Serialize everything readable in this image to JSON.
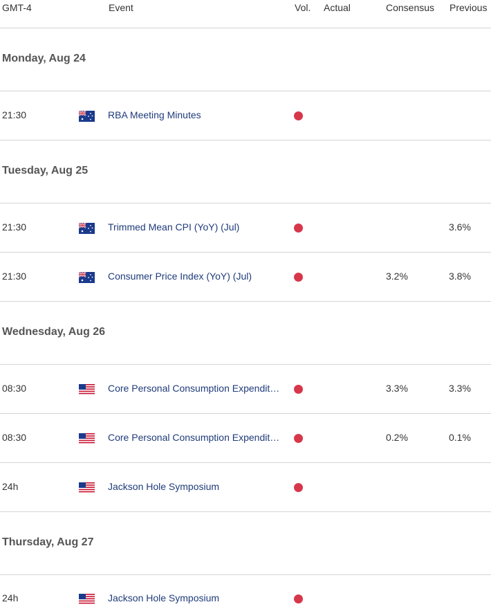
{
  "columns": {
    "time": "GMT-4",
    "event": "Event",
    "vol": "Vol.",
    "actual": "Actual",
    "consensus": "Consensus",
    "previous": "Previous"
  },
  "colors": {
    "volatility_high": "#d7374b",
    "event_link": "#1f3b7a"
  },
  "days": [
    {
      "label": "Monday, Aug 24",
      "events": [
        {
          "time": "21:30",
          "country": "au-flag-icon",
          "title": "RBA Meeting Minutes",
          "actual": "",
          "consensus": "",
          "previous": ""
        }
      ]
    },
    {
      "label": "Tuesday, Aug 25",
      "events": [
        {
          "time": "21:30",
          "country": "au-flag-icon",
          "title": "Trimmed Mean CPI (YoY) (Jul)",
          "actual": "",
          "consensus": "",
          "previous": "3.6%"
        },
        {
          "time": "21:30",
          "country": "au-flag-icon",
          "title": "Consumer Price Index (YoY) (Jul)",
          "actual": "",
          "consensus": "3.2%",
          "previous": "3.8%"
        }
      ]
    },
    {
      "label": "Wednesday, Aug 26",
      "events": [
        {
          "time": "08:30",
          "country": "us-flag-icon",
          "title": "Core Personal Consumption Expendit…",
          "actual": "",
          "consensus": "3.3%",
          "previous": "3.3%"
        },
        {
          "time": "08:30",
          "country": "us-flag-icon",
          "title": "Core Personal Consumption Expendit…",
          "actual": "",
          "consensus": "0.2%",
          "previous": "0.1%"
        },
        {
          "time": "24h",
          "country": "us-flag-icon",
          "title": "Jackson Hole Symposium",
          "actual": "",
          "consensus": "",
          "previous": ""
        }
      ]
    },
    {
      "label": "Thursday, Aug 27",
      "events": [
        {
          "time": "24h",
          "country": "us-flag-icon",
          "title": "Jackson Hole Symposium",
          "actual": "",
          "consensus": "",
          "previous": ""
        }
      ]
    }
  ]
}
